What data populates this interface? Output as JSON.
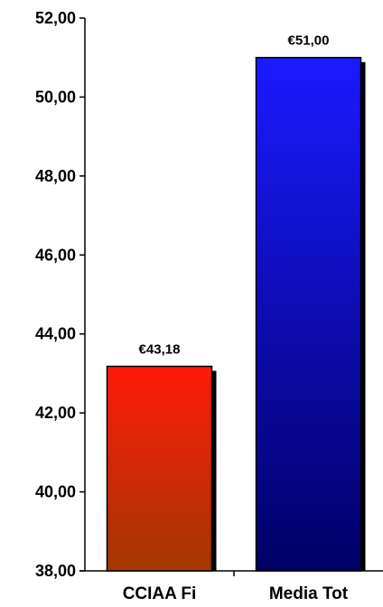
{
  "chart_data": {
    "type": "bar",
    "categories": [
      "CCIAA Fi",
      "Media Tot"
    ],
    "values": [
      43.18,
      51.0
    ],
    "data_labels": [
      "€43,18",
      "€51,00"
    ],
    "ylim": [
      38,
      52
    ],
    "yticks": [
      38,
      40,
      42,
      44,
      46,
      48,
      50,
      52
    ],
    "ytick_labels": [
      "38,00",
      "40,00",
      "42,00",
      "44,00",
      "46,00",
      "48,00",
      "50,00",
      "52,00"
    ],
    "grid": false,
    "legend": "none",
    "colors": {
      "CCIAA Fi": [
        "#ff1a0a",
        "#a33800"
      ],
      "Media Tot": [
        "#1a1aff",
        "#000066"
      ],
      "shadow": "#000000",
      "axis": "#000000"
    }
  }
}
